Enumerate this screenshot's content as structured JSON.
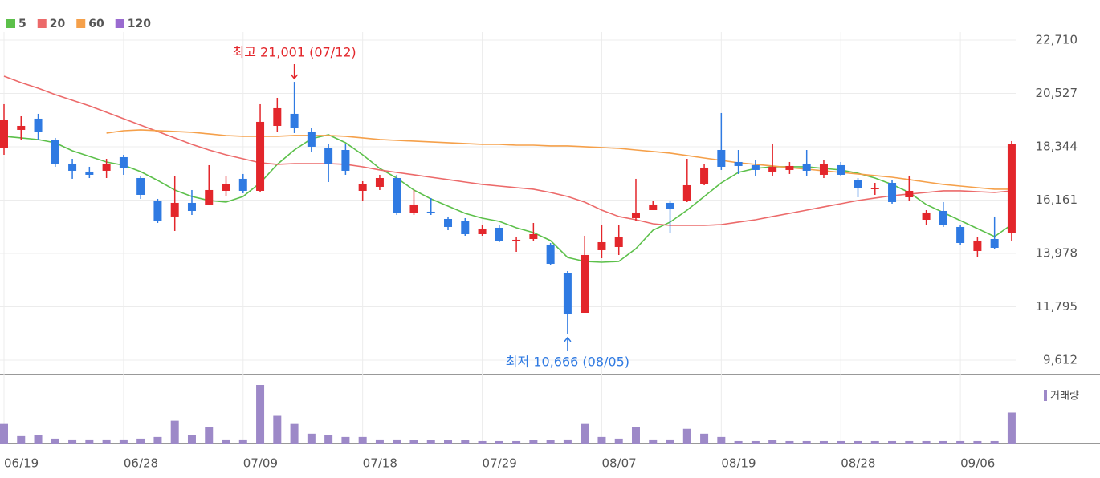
{
  "chart_data": {
    "type": "candlestick",
    "categories": [
      "06/19",
      null,
      null,
      null,
      null,
      null,
      null,
      "06/28",
      null,
      null,
      null,
      null,
      null,
      null,
      "07/09",
      null,
      null,
      null,
      null,
      null,
      null,
      "07/18",
      null,
      null,
      null,
      null,
      null,
      null,
      "07/29",
      null,
      null,
      null,
      null,
      null,
      null,
      "08/07",
      null,
      null,
      null,
      null,
      null,
      null,
      "08/19",
      null,
      null,
      null,
      null,
      null,
      null,
      "08/28",
      null,
      null,
      null,
      null,
      null,
      null,
      "09/06",
      null,
      null,
      null
    ],
    "open": [
      18279,
      19034,
      19494,
      18607,
      17655,
      17327,
      17360,
      17918,
      17064,
      16145,
      15489,
      16047,
      15981,
      16539,
      17032,
      16539,
      19198,
      19691,
      18936,
      18279,
      18213,
      16539,
      16703,
      17064,
      15620,
      15686,
      15390,
      15292,
      14766,
      15029,
      14504,
      14569,
      14340,
      13158,
      11549,
      14110,
      14241,
      15423,
      15751,
      16047,
      16112,
      16802,
      18213,
      17721,
      17590,
      17327,
      17393,
      17655,
      17196,
      17590,
      16966,
      16605,
      16867,
      16276,
      15357,
      15718,
      15062,
      14077,
      14569,
      14799
    ],
    "high": [
      20085,
      19592,
      19691,
      18706,
      17852,
      17524,
      17852,
      18016,
      17130,
      16211,
      17130,
      16572,
      17590,
      17130,
      17229,
      20085,
      20347,
      21001,
      19100,
      18443,
      18443,
      16933,
      17196,
      17196,
      16572,
      16244,
      15489,
      15423,
      15127,
      15160,
      14668,
      15226,
      14405,
      13256,
      14701,
      15160,
      15160,
      17032,
      16145,
      16112,
      17852,
      17623,
      19724,
      18213,
      17787,
      18476,
      17721,
      18213,
      17787,
      17721,
      17064,
      16867,
      16966,
      17163,
      15751,
      16080,
      15160,
      14635,
      15489,
      18575
    ],
    "low": [
      18016,
      18607,
      18607,
      17524,
      17032,
      17064,
      17064,
      17196,
      16211,
      15226,
      14898,
      15554,
      15948,
      16309,
      16441,
      16473,
      18936,
      18903,
      18115,
      16900,
      17196,
      16145,
      16572,
      15554,
      15554,
      15554,
      14930,
      14701,
      14701,
      14438,
      14044,
      14504,
      13486,
      10666,
      11549,
      13781,
      13913,
      15292,
      15751,
      14832,
      16080,
      16769,
      17393,
      17229,
      17130,
      17163,
      17229,
      17163,
      17064,
      17130,
      16276,
      16375,
      16014,
      16145,
      15160,
      15062,
      14340,
      13847,
      14143,
      14504
    ],
    "close": [
      19428,
      19198,
      18936,
      17623,
      17360,
      17196,
      17655,
      17458,
      16375,
      15292,
      16047,
      15718,
      16572,
      16802,
      16539,
      19363,
      19921,
      19100,
      18345,
      17623,
      17360,
      16802,
      17064,
      15620,
      15981,
      15620,
      15062,
      14766,
      14996,
      14471,
      14537,
      14766,
      13552,
      11483,
      13913,
      14438,
      14635,
      15653,
      15981,
      15817,
      16769,
      17491,
      17524,
      17557,
      17393,
      17524,
      17557,
      17360,
      17623,
      17196,
      16638,
      16670,
      16080,
      16539,
      15653,
      15127,
      14405,
      14504,
      14208,
      18443
    ],
    "up_color": "#e3262b",
    "down_color": "#2f7ae2",
    "moving_averages": [
      {
        "name": "5",
        "color": "#5cc04a",
        "values": [
          18772,
          18706,
          18640,
          18509,
          18181,
          17951,
          17721,
          17590,
          17327,
          16966,
          16572,
          16309,
          16145,
          16080,
          16309,
          16867,
          17623,
          18213,
          18673,
          18837,
          18509,
          18016,
          17458,
          17064,
          16572,
          16211,
          15915,
          15620,
          15423,
          15292,
          15029,
          14832,
          14504,
          13814,
          13650,
          13617,
          13650,
          14175,
          14930,
          15259,
          15751,
          16309,
          16867,
          17294,
          17458,
          17524,
          17524,
          17524,
          17458,
          17393,
          17261,
          17064,
          16802,
          16473,
          15981,
          15653,
          15324,
          14996,
          14668,
          15160
        ]
      },
      {
        "name": "20",
        "color": "#ec6a6a",
        "values": [
          21234,
          20971,
          20741,
          20479,
          20249,
          20019,
          19756,
          19494,
          19231,
          18969,
          18706,
          18443,
          18213,
          18016,
          17852,
          17688,
          17623,
          17655,
          17655,
          17655,
          17623,
          17524,
          17393,
          17294,
          17196,
          17097,
          16999,
          16900,
          16802,
          16736,
          16670,
          16605,
          16473,
          16309,
          16080,
          15751,
          15489,
          15357,
          15193,
          15127,
          15127,
          15127,
          15160,
          15259,
          15357,
          15489,
          15620,
          15751,
          15883,
          16014,
          16145,
          16244,
          16342,
          16408,
          16473,
          16539,
          16539,
          16506,
          16473,
          16539
        ]
      },
      {
        "name": "60",
        "color": "#f5a04a",
        "values": [
          null,
          null,
          null,
          null,
          null,
          null,
          18903,
          19001,
          19034,
          19001,
          18969,
          18936,
          18870,
          18804,
          18772,
          18772,
          18772,
          18804,
          18804,
          18804,
          18772,
          18706,
          18640,
          18607,
          18575,
          18542,
          18509,
          18476,
          18443,
          18443,
          18410,
          18410,
          18378,
          18378,
          18345,
          18312,
          18279,
          18213,
          18148,
          18082,
          17984,
          17885,
          17787,
          17688,
          17623,
          17557,
          17491,
          17426,
          17360,
          17294,
          17229,
          17163,
          17097,
          16999,
          16900,
          16802,
          16736,
          16670,
          16605,
          16605
        ]
      },
      {
        "name": "120",
        "color": "#9a6bd0",
        "values": [
          null,
          null,
          null,
          null,
          null,
          null,
          null,
          null,
          null,
          null,
          null,
          null,
          null,
          null,
          null,
          null,
          null,
          null,
          null,
          null,
          null,
          null,
          null,
          null,
          null,
          null,
          null,
          null,
          null,
          null,
          null,
          null,
          null,
          null,
          null,
          null,
          null,
          null,
          null,
          null,
          null,
          null,
          null,
          null,
          null,
          null,
          null,
          null,
          null,
          null,
          null,
          null,
          null,
          null,
          null,
          null,
          null,
          null,
          null,
          null
        ]
      }
    ],
    "volume": {
      "name": "거래량",
      "color": "#9d89c8",
      "values": [
        24,
        9,
        10,
        6,
        5,
        5,
        5,
        5,
        6,
        8,
        28,
        10,
        20,
        5,
        5,
        72,
        34,
        24,
        12,
        10,
        8,
        8,
        5,
        5,
        4,
        4,
        4,
        4,
        3,
        3,
        3,
        4,
        4,
        5,
        24,
        8,
        6,
        20,
        5,
        5,
        18,
        12,
        8,
        3,
        3,
        4,
        3,
        3,
        3,
        3,
        3,
        3,
        3,
        3,
        3,
        3,
        3,
        3,
        3,
        38
      ]
    },
    "ylim": [
      9612,
      22710
    ],
    "yticks": [
      {
        "value": 9612,
        "label": "9,612"
      },
      {
        "value": 11795,
        "label": "11,795"
      },
      {
        "value": 13978,
        "label": "13,978"
      },
      {
        "value": 16161,
        "label": "16,161"
      },
      {
        "value": 18344,
        "label": "18,344"
      },
      {
        "value": 20527,
        "label": "20,527"
      },
      {
        "value": 22710,
        "label": "22,710"
      }
    ],
    "grid": true,
    "annotations": {
      "high": "최고 21,001 (07/12)",
      "low": "최저 10,666 (08/05)"
    }
  }
}
